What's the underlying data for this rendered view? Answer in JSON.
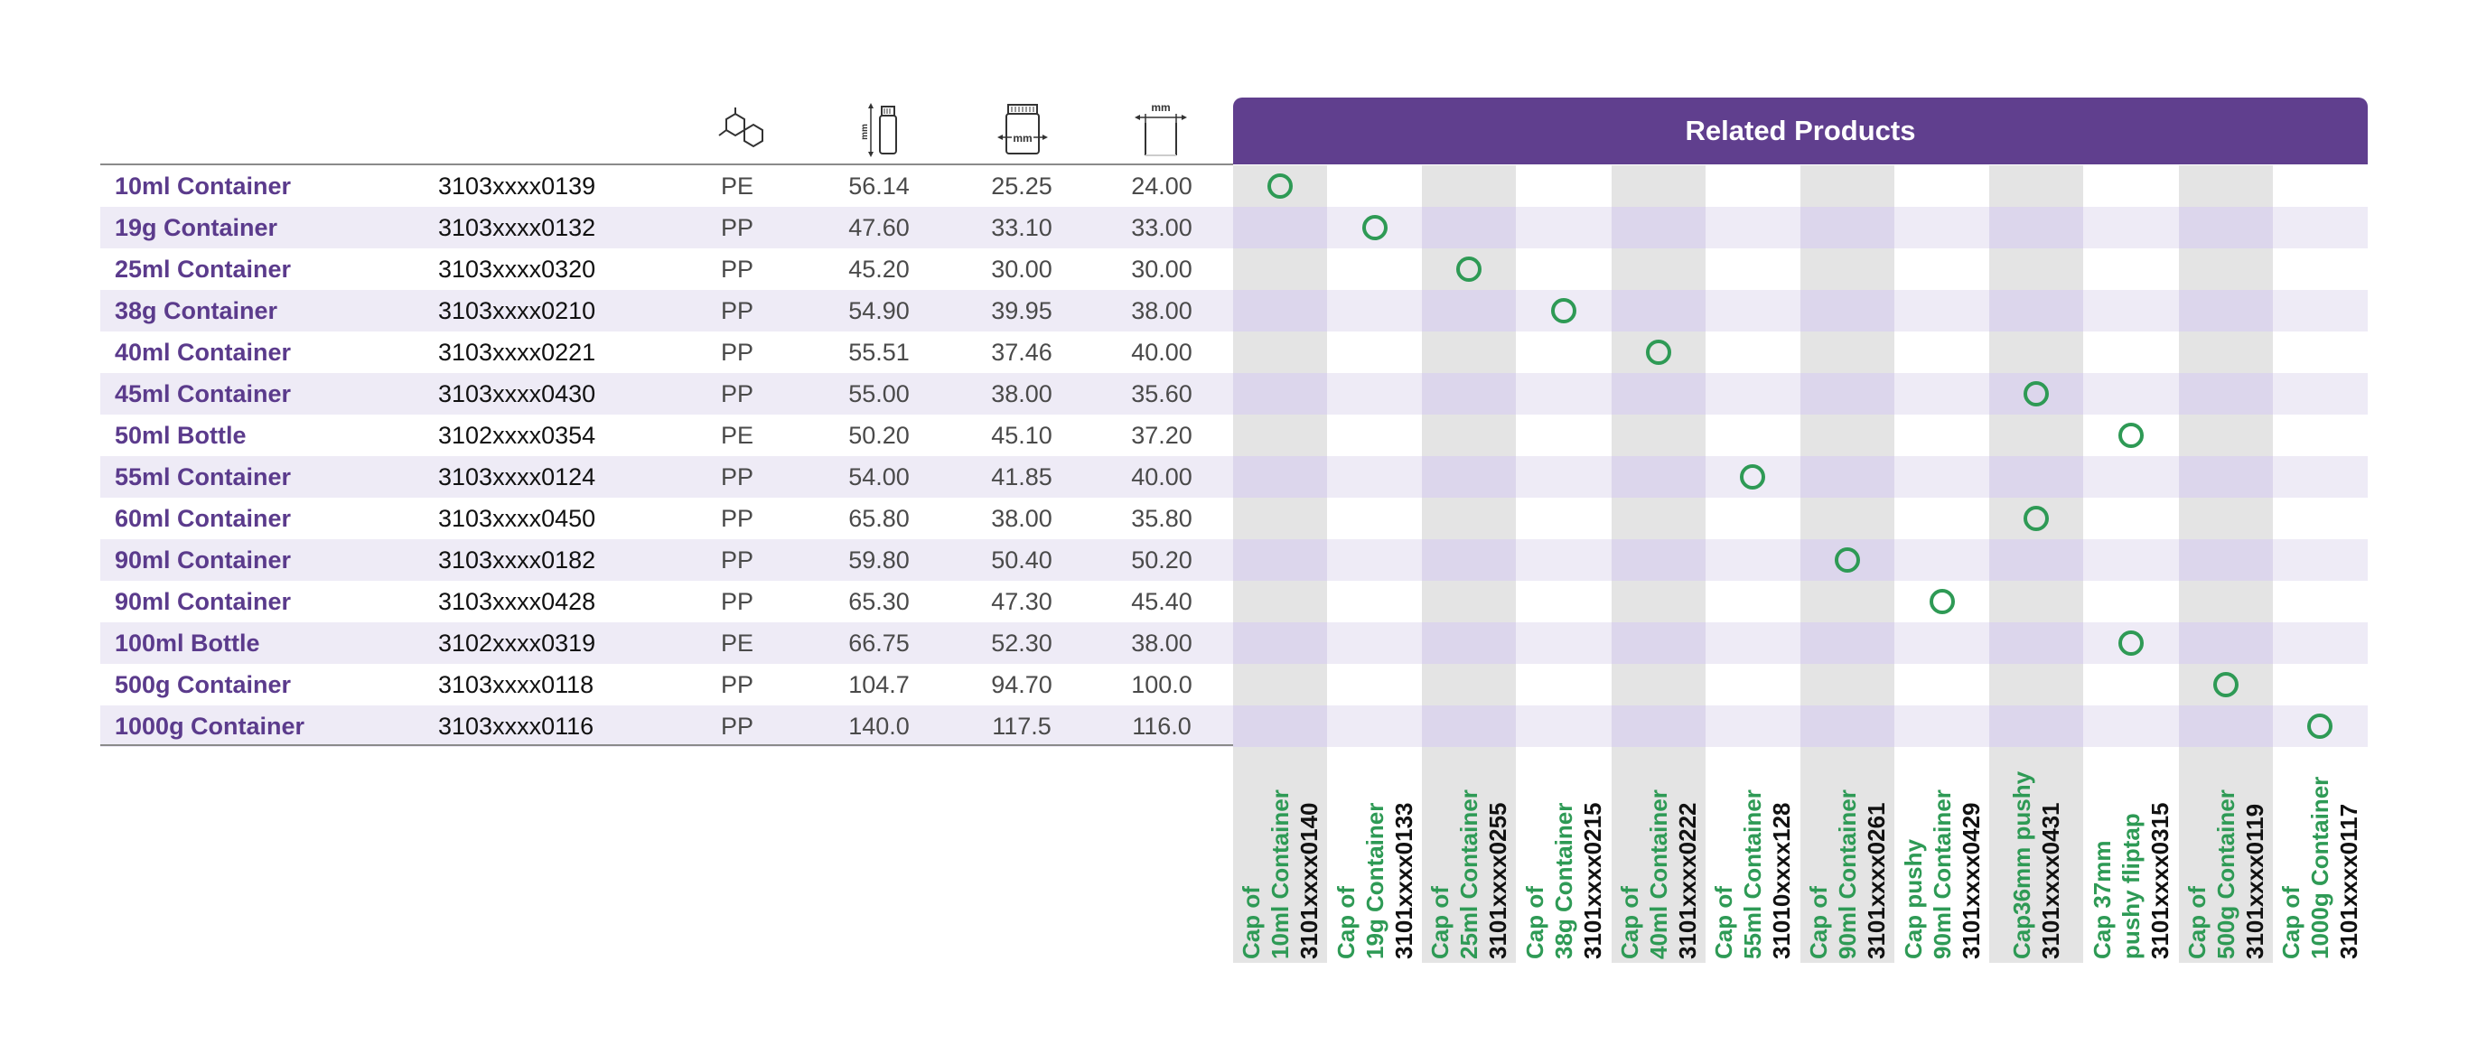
{
  "colors": {
    "purple": "#603f8e",
    "product_text": "#5b3b8c",
    "row_alt": "#eeebf6",
    "column_gray": "#e4e4e4",
    "green": "#2e9a55"
  },
  "header_icons": [
    {
      "name": "molecule-icon"
    },
    {
      "name": "height-bottle-icon",
      "unit": "mm"
    },
    {
      "name": "width-bottle-icon",
      "unit": "mm"
    },
    {
      "name": "neck-diameter-icon",
      "unit": "mm"
    }
  ],
  "related_header": "Related Products",
  "products": [
    {
      "name": "10ml Container",
      "code": "3103xxxx0139",
      "material": "PE",
      "height": "56.14",
      "width": "25.25",
      "neck": "24.00",
      "related": 0
    },
    {
      "name": "19g Container",
      "code": "3103xxxx0132",
      "material": "PP",
      "height": "47.60",
      "width": "33.10",
      "neck": "33.00",
      "related": 1
    },
    {
      "name": "25ml Container",
      "code": "3103xxxx0320",
      "material": "PP",
      "height": "45.20",
      "width": "30.00",
      "neck": "30.00",
      "related": 2
    },
    {
      "name": "38g Container",
      "code": "3103xxxx0210",
      "material": "PP",
      "height": "54.90",
      "width": "39.95",
      "neck": "38.00",
      "related": 3
    },
    {
      "name": "40ml Container",
      "code": "3103xxxx0221",
      "material": "PP",
      "height": "55.51",
      "width": "37.46",
      "neck": "40.00",
      "related": 4
    },
    {
      "name": "45ml Container",
      "code": "3103xxxx0430",
      "material": "PP",
      "height": "55.00",
      "width": "38.00",
      "neck": "35.60",
      "related": 8
    },
    {
      "name": "50ml Bottle",
      "code": "3102xxxx0354",
      "material": "PE",
      "height": "50.20",
      "width": "45.10",
      "neck": "37.20",
      "related": 9
    },
    {
      "name": "55ml Container",
      "code": "3103xxxx0124",
      "material": "PP",
      "height": "54.00",
      "width": "41.85",
      "neck": "40.00",
      "related": 5
    },
    {
      "name": "60ml Container",
      "code": "3103xxxx0450",
      "material": "PP",
      "height": "65.80",
      "width": "38.00",
      "neck": "35.80",
      "related": 8
    },
    {
      "name": "90ml Container",
      "code": "3103xxxx0182",
      "material": "PP",
      "height": "59.80",
      "width": "50.40",
      "neck": "50.20",
      "related": 6
    },
    {
      "name": "90ml Container",
      "code": "3103xxxx0428",
      "material": "PP",
      "height": "65.30",
      "width": "47.30",
      "neck": "45.40",
      "related": 7
    },
    {
      "name": "100ml Bottle",
      "code": "3102xxxx0319",
      "material": "PE",
      "height": "66.75",
      "width": "52.30",
      "neck": "38.00",
      "related": 9
    },
    {
      "name": "500g Container",
      "code": "3103xxxx0118",
      "material": "PP",
      "height": "104.7",
      "width": "94.70",
      "neck": "100.0",
      "related": 10
    },
    {
      "name": "1000g Container",
      "code": "3103xxxx0116",
      "material": "PP",
      "height": "140.0",
      "width": "117.5",
      "neck": "116.0",
      "related": 11
    }
  ],
  "related_products": [
    {
      "lines": [
        "Cap of",
        "10ml Container"
      ],
      "code": "3101xxxx0140"
    },
    {
      "lines": [
        "Cap of",
        "19g Container"
      ],
      "code": "3101xxxx0133"
    },
    {
      "lines": [
        "Cap of",
        "25ml Container"
      ],
      "code": "3101xxxx0255"
    },
    {
      "lines": [
        "Cap of",
        "38g Container"
      ],
      "code": "3101xxxx0215"
    },
    {
      "lines": [
        "Cap of",
        "40ml Container"
      ],
      "code": "3101xxxx0222"
    },
    {
      "lines": [
        "Cap of",
        "55ml Container"
      ],
      "code": "31010xxxx128"
    },
    {
      "lines": [
        "Cap of",
        "90ml Container"
      ],
      "code": "3101xxxx0261"
    },
    {
      "lines": [
        "Cap pushy",
        "90ml Container"
      ],
      "code": "3101xxxx0429"
    },
    {
      "lines": [
        "Cap36mm pushy"
      ],
      "code": "3101xxxx0431"
    },
    {
      "lines": [
        "Cap 37mm",
        "pushy fliptap"
      ],
      "code": "3101xxxx0315"
    },
    {
      "lines": [
        "Cap of",
        "500g Container"
      ],
      "code": "3101xxxx0119"
    },
    {
      "lines": [
        "Cap of",
        "1000g Container"
      ],
      "code": "3101xxxx0117"
    }
  ]
}
